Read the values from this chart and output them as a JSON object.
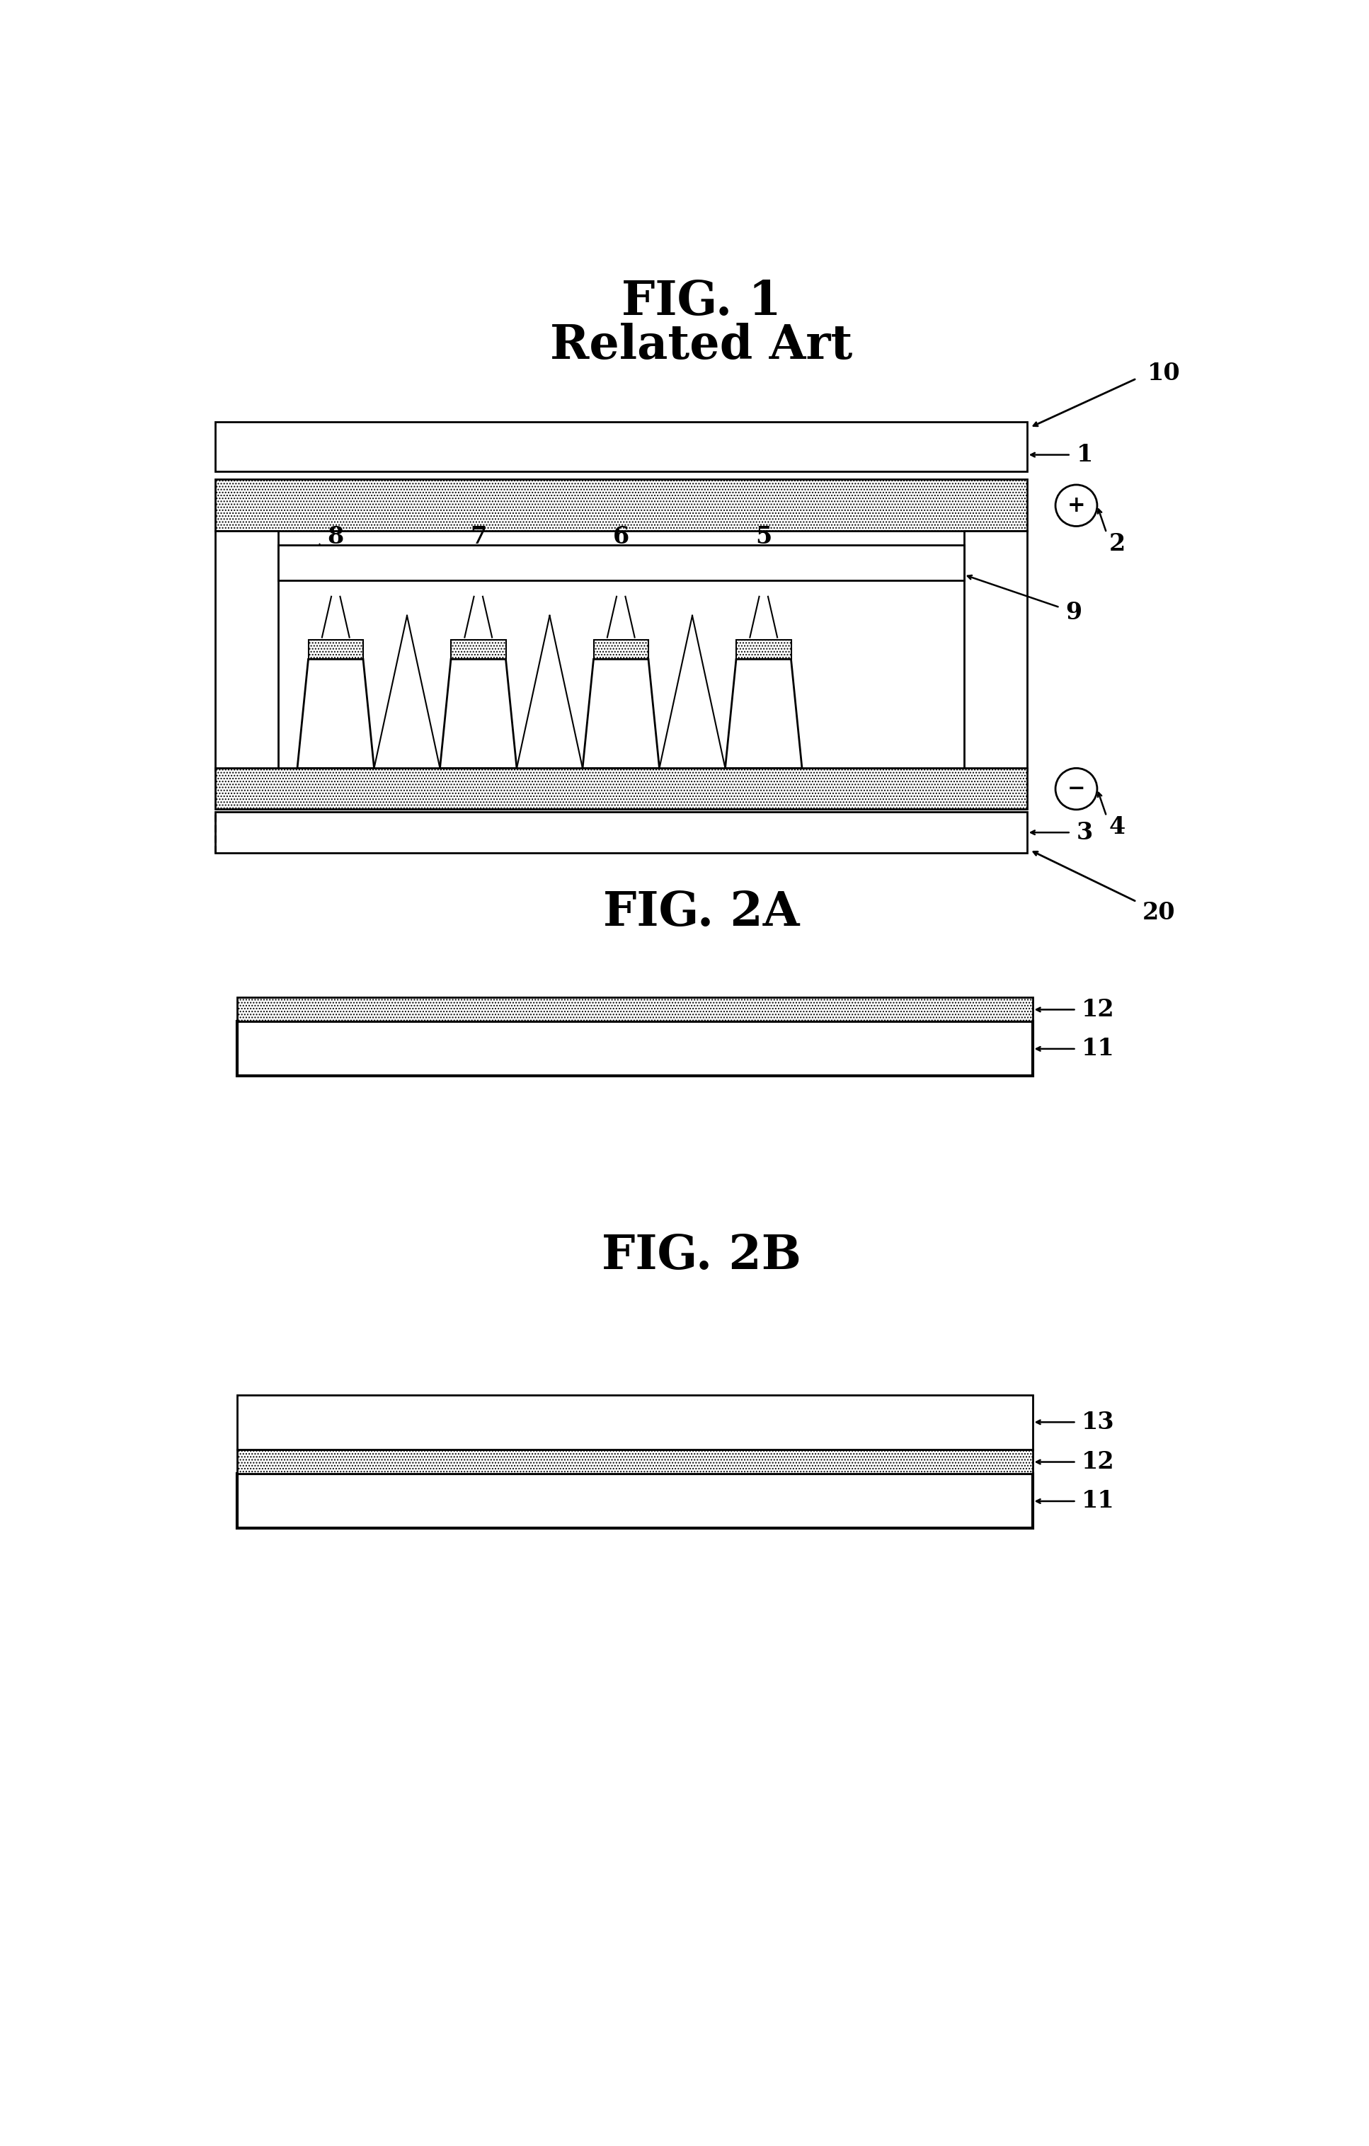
{
  "bg_color": "#ffffff",
  "fig_width": 19.34,
  "fig_height": 30.32,
  "title1": "FIG. 1",
  "subtitle1": "Related Art",
  "title2": "FIG. 2A",
  "title3": "FIG. 2B",
  "font_family": "DejaVu Serif"
}
